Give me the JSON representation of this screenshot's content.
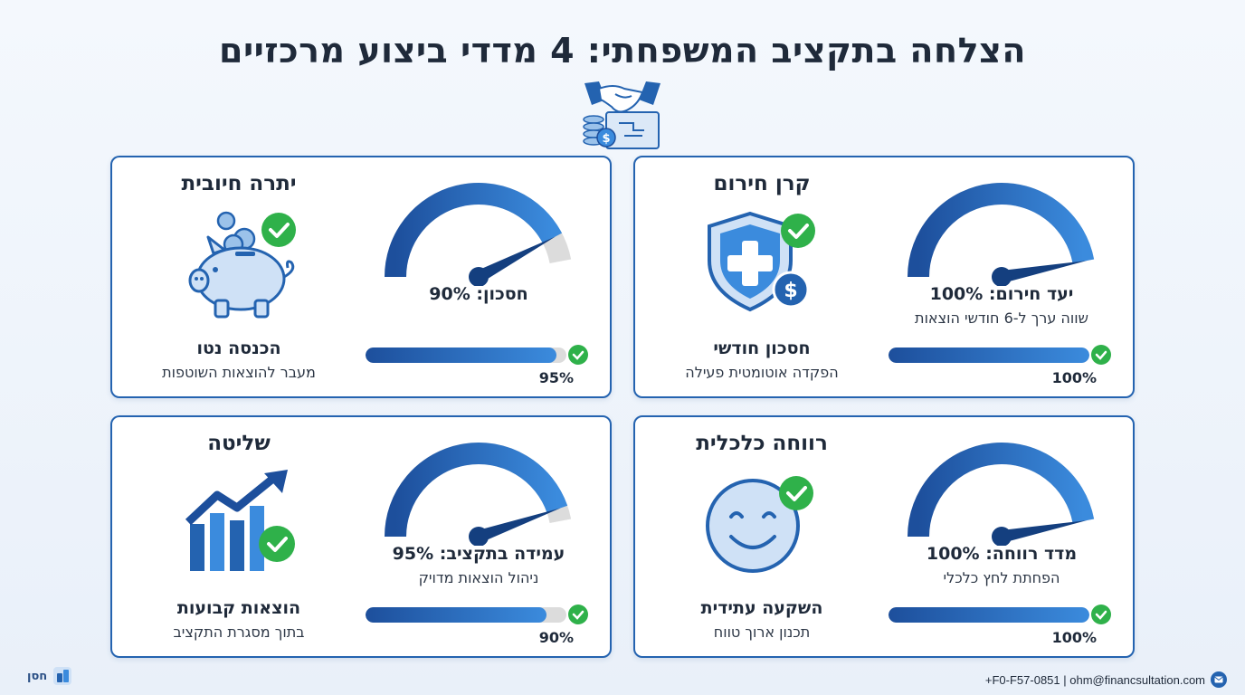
{
  "title": "הצלחה בתקציב המשפחתי: 4 מדדי ביצוע מרכזיים",
  "header_icon": "handshake-coins-plan-icon",
  "cards": [
    {
      "title": "קרן חירום",
      "icon": "shield-medical-dollar-icon",
      "gauge_value": 100,
      "gauge_label": "יעד חירום: 100%",
      "gauge_desc": "שווה ערך ל-6 חודשי הוצאות",
      "sub_title": "חסכון חודשי",
      "sub_desc": "הפקדה אוטומטית פעילה",
      "bar_value": 100,
      "bar_pct": "100%"
    },
    {
      "title": "יתרה חיובית",
      "icon": "piggy-bank-icon",
      "gauge_value": 90,
      "gauge_label": "חסכון: 90%",
      "gauge_desc": "",
      "sub_title": "הכנסה נטו",
      "sub_desc": "מעבר להוצאות השוטפות",
      "bar_value": 95,
      "bar_pct": "95%"
    },
    {
      "title": "רווחה כלכלית",
      "icon": "smiley-face-icon",
      "gauge_value": 100,
      "gauge_label": "מדד רווחה: 100%",
      "gauge_desc": "הפחתת לחץ כלכלי",
      "sub_title": "השקעה עתידית",
      "sub_desc": "תכנון ארוך טווח",
      "bar_value": 100,
      "bar_pct": "100%"
    },
    {
      "title": "שליטה",
      "icon": "growth-chart-icon",
      "gauge_value": 95,
      "gauge_label": "עמידה בתקציב: 95%",
      "gauge_desc": "ניהול הוצאות מדויק",
      "sub_title": "הוצאות קבועות",
      "sub_desc": "בתוך מסגרת התקציב",
      "bar_value": 90,
      "bar_pct": "90%"
    }
  ],
  "colors": {
    "primary": "#2463b0",
    "light_blue": "#3b8bdd",
    "success": "#2fb14a",
    "track": "#dcdcdc"
  },
  "footer": {
    "logo_text": "חסן",
    "contact": "+F0-F57-0851 | ohm@financsultation.com"
  }
}
